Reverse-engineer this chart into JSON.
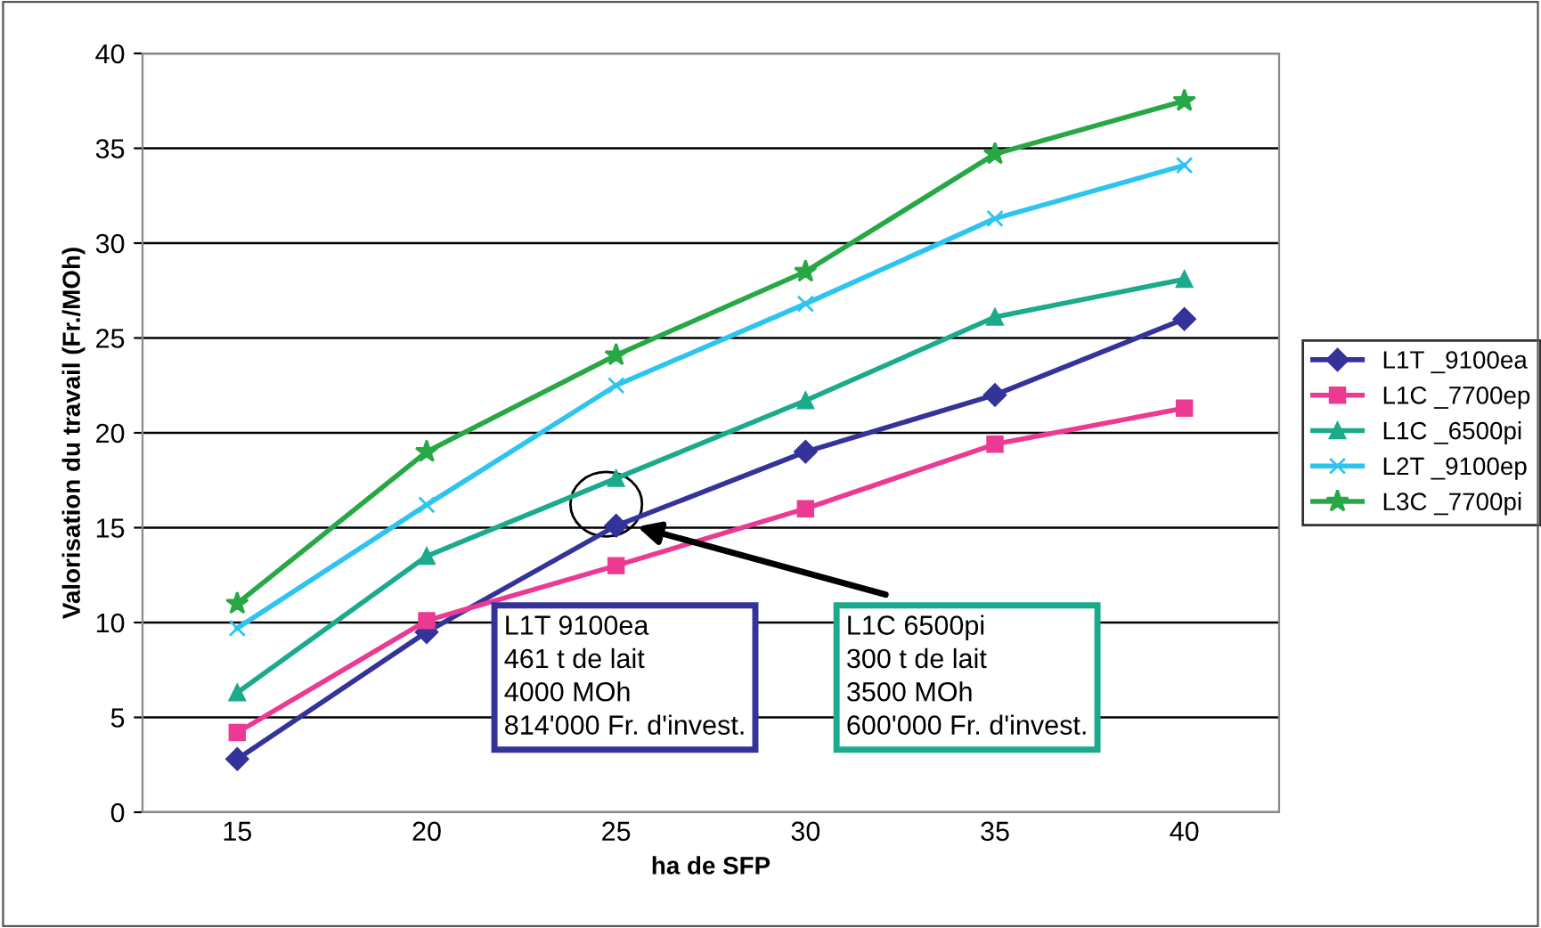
{
  "chart_data": {
    "type": "line",
    "xlabel": "ha de SFP",
    "ylabel": "Valorisation du travail (Fr./MOh)",
    "categories": [
      "15",
      "20",
      "25",
      "30",
      "35",
      "40"
    ],
    "series": [
      {
        "name": "L1T _9100ea",
        "color": "#333399",
        "marker": "diamond",
        "values": [
          2.8,
          9.5,
          15.1,
          19.0,
          22.0,
          26.0
        ]
      },
      {
        "name": "L1C _7700ep",
        "color": "#ec3a93",
        "marker": "square",
        "values": [
          4.2,
          10.1,
          13.0,
          16.0,
          19.4,
          21.3
        ]
      },
      {
        "name": "L1C _6500pi",
        "color": "#1bab8c",
        "marker": "triangle",
        "values": [
          6.3,
          13.5,
          17.6,
          21.7,
          26.1,
          28.1
        ]
      },
      {
        "name": "L2T _9100ep",
        "color": "#2ec4f0",
        "marker": "cross",
        "values": [
          9.7,
          16.2,
          22.5,
          26.8,
          31.3,
          34.1
        ]
      },
      {
        "name": "L3C _7700pi",
        "color": "#28a845",
        "marker": "star",
        "values": [
          11.0,
          19.0,
          24.1,
          28.5,
          34.7,
          37.5
        ]
      }
    ],
    "ylim": [
      0,
      40
    ],
    "yticks": [
      0,
      5,
      10,
      15,
      20,
      25,
      30,
      35,
      40
    ],
    "grid": "y",
    "legend": "right",
    "annotations": [
      "L1T 9100ea\n461 t de lait\n4000 MOh\n814'000 Fr. d'invest.",
      "L1C 6500pi\n300 t de lait\n3500 MOh\n600'000 Fr. d'invest."
    ]
  }
}
